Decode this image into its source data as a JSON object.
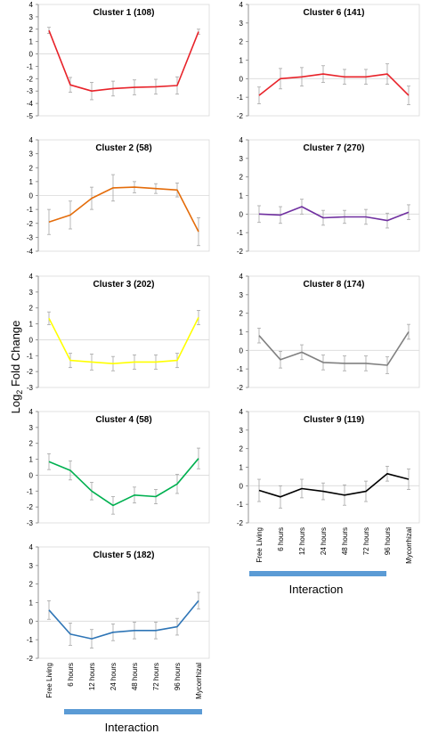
{
  "figure": {
    "ylabel_base": "Log",
    "ylabel_sub": "2",
    "ylabel_rest": " Fold Change",
    "xlabel": "Interaction"
  },
  "colors": {
    "interaction_bar": "#5b9bd5",
    "axes": "#808080",
    "grid_zero": "#d9d9d9",
    "error_bar": "#a6a6a6"
  },
  "chart_data": [
    {
      "type": "line",
      "title": "Cluster 1 (108)",
      "color": "#e8232a",
      "categories": [
        "Free Living",
        "6 hours",
        "12 hours",
        "24 hours",
        "48 hours",
        "72 hours",
        "96 hours",
        "Mycorrhizal"
      ],
      "values": [
        1.9,
        -2.5,
        -3.0,
        -2.8,
        -2.7,
        -2.65,
        -2.55,
        1.8
      ],
      "errors": [
        0.25,
        0.6,
        0.7,
        0.6,
        0.6,
        0.6,
        0.7,
        0.2
      ],
      "ylim": [
        -5,
        4
      ],
      "ticks": [
        4,
        3,
        2,
        1,
        0,
        -1,
        -2,
        -3,
        -4,
        -5
      ]
    },
    {
      "type": "line",
      "title": "Cluster 6 (141)",
      "color": "#e8232a",
      "categories": [
        "Free Living",
        "6 hours",
        "12 hours",
        "24 hours",
        "48 hours",
        "72 hours",
        "96 hours",
        "Mycorrhizal"
      ],
      "values": [
        -0.9,
        0.0,
        0.1,
        0.25,
        0.1,
        0.1,
        0.25,
        -0.9
      ],
      "errors": [
        0.45,
        0.55,
        0.5,
        0.45,
        0.4,
        0.4,
        0.55,
        0.5
      ],
      "ylim": [
        -2,
        4
      ],
      "ticks": [
        4,
        3,
        2,
        1,
        0,
        -1,
        -2
      ]
    },
    {
      "type": "line",
      "title": "Cluster 2 (58)",
      "color": "#e46c0a",
      "categories": [
        "Free Living",
        "6 hours",
        "12 hours",
        "24 hours",
        "48 hours",
        "72 hours",
        "96 hours",
        "Mycorrhizal"
      ],
      "values": [
        -1.9,
        -1.4,
        -0.2,
        0.55,
        0.6,
        0.5,
        0.4,
        -2.6
      ],
      "errors": [
        0.9,
        1.0,
        0.8,
        0.95,
        0.4,
        0.35,
        0.5,
        1.0
      ],
      "ylim": [
        -4,
        4
      ],
      "ticks": [
        4,
        3,
        2,
        1,
        0,
        -1,
        -2,
        -3,
        -4
      ]
    },
    {
      "type": "line",
      "title": "Cluster 7 (270)",
      "color": "#7030a0",
      "categories": [
        "Free Living",
        "6 hours",
        "12 hours",
        "24 hours",
        "48 hours",
        "72 hours",
        "96 hours",
        "Mycorrhizal"
      ],
      "values": [
        0.0,
        -0.05,
        0.4,
        -0.2,
        -0.15,
        -0.15,
        -0.35,
        0.1
      ],
      "errors": [
        0.45,
        0.45,
        0.4,
        0.4,
        0.35,
        0.4,
        0.4,
        0.4
      ],
      "ylim": [
        -2,
        4
      ],
      "ticks": [
        4,
        3,
        2,
        1,
        0,
        -1,
        -2
      ]
    },
    {
      "type": "line",
      "title": "Cluster 3 (202)",
      "color": "#ffff00",
      "categories": [
        "Free Living",
        "6 hours",
        "12 hours",
        "24 hours",
        "48 hours",
        "72 hours",
        "96 hours",
        "Mycorrhizal"
      ],
      "values": [
        1.35,
        -1.3,
        -1.4,
        -1.5,
        -1.4,
        -1.4,
        -1.3,
        1.4
      ],
      "errors": [
        0.4,
        0.45,
        0.5,
        0.45,
        0.45,
        0.45,
        0.45,
        0.45
      ],
      "ylim": [
        -3,
        4
      ],
      "ticks": [
        4,
        3,
        2,
        1,
        0,
        -1,
        -2,
        -3
      ]
    },
    {
      "type": "line",
      "title": "Cluster 8 (174)",
      "color": "#808080",
      "categories": [
        "Free Living",
        "6 hours",
        "12 hours",
        "24 hours",
        "48 hours",
        "72 hours",
        "96 hours",
        "Mycorrhizal"
      ],
      "values": [
        0.8,
        -0.5,
        -0.1,
        -0.65,
        -0.7,
        -0.7,
        -0.8,
        1.0
      ],
      "errors": [
        0.4,
        0.45,
        0.4,
        0.4,
        0.4,
        0.4,
        0.45,
        0.4
      ],
      "ylim": [
        -2,
        4
      ],
      "ticks": [
        4,
        3,
        2,
        1,
        0,
        -1,
        -2
      ]
    },
    {
      "type": "line",
      "title": "Cluster 4 (58)",
      "color": "#00b050",
      "categories": [
        "Free Living",
        "6 hours",
        "12 hours",
        "24 hours",
        "48 hours",
        "72 hours",
        "96 hours",
        "Mycorrhizal"
      ],
      "values": [
        0.85,
        0.3,
        -1.0,
        -1.9,
        -1.25,
        -1.35,
        -0.55,
        1.05
      ],
      "errors": [
        0.5,
        0.6,
        0.55,
        0.55,
        0.5,
        0.45,
        0.6,
        0.65
      ],
      "ylim": [
        -3,
        4
      ],
      "ticks": [
        4,
        3,
        2,
        1,
        0,
        -1,
        -2,
        -3
      ]
    },
    {
      "type": "line",
      "title": "Cluster 9 (119)",
      "color": "#000000",
      "categories": [
        "Free Living",
        "6 hours",
        "12 hours",
        "24 hours",
        "48 hours",
        "72 hours",
        "96 hours",
        "Mycorrhizal"
      ],
      "values": [
        -0.25,
        -0.6,
        -0.15,
        -0.3,
        -0.5,
        -0.3,
        0.65,
        0.35
      ],
      "errors": [
        0.6,
        0.6,
        0.5,
        0.45,
        0.55,
        0.55,
        0.4,
        0.55
      ],
      "ylim": [
        -2,
        4
      ],
      "ticks": [
        4,
        3,
        2,
        1,
        0,
        -1,
        -2
      ]
    },
    {
      "type": "line",
      "title": "Cluster 5 (182)",
      "color": "#2e75b6",
      "categories": [
        "Free Living",
        "6 hours",
        "12 hours",
        "24 hours",
        "48 hours",
        "72 hours",
        "96 hours",
        "Mycorrhizal"
      ],
      "values": [
        0.6,
        -0.7,
        -0.95,
        -0.6,
        -0.5,
        -0.5,
        -0.3,
        1.1
      ],
      "errors": [
        0.5,
        0.6,
        0.5,
        0.45,
        0.45,
        0.45,
        0.45,
        0.45
      ],
      "ylim": [
        -2,
        4
      ],
      "ticks": [
        4,
        3,
        2,
        1,
        0,
        -1,
        -2
      ]
    }
  ]
}
